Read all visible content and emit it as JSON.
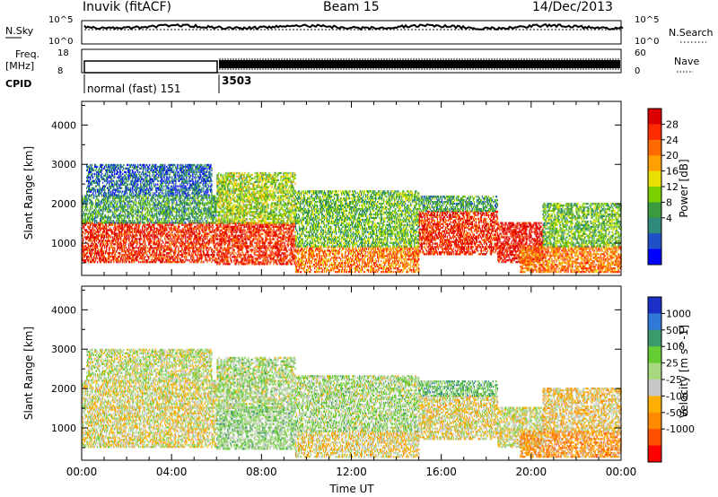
{
  "header": {
    "station": "Inuvik (fitACF)",
    "beam": "Beam 15",
    "date": "14/Dec/2013"
  },
  "strip_panel": {
    "nsky_label": "N.Sky",
    "nsky_ticks": [
      "10^5",
      "10^0"
    ],
    "nsearch_label": "N.Search",
    "nsearch_ticks": [
      "10^5",
      "10^0"
    ],
    "freq_label_1": "Freq.",
    "freq_label_2": "[MHz]",
    "freq_ticks": [
      "18",
      "8"
    ],
    "nave_label": "Nave",
    "nave_ticks": [
      "60",
      "0"
    ],
    "cpid_label": "CPID",
    "cpid_modes": [
      {
        "label": "normal (fast) 151",
        "start_hour": 0.0,
        "end_hour": 6.0
      },
      {
        "label": "3503",
        "start_hour": 6.0,
        "end_hour": 24.0
      }
    ]
  },
  "chart_data": [
    {
      "type": "heatmap",
      "name": "power",
      "ylabel": "Slant Range [km]",
      "xlabel": "",
      "xlim": [
        0,
        24
      ],
      "ylim": [
        180,
        4600
      ],
      "yticks": [
        1000,
        2000,
        3000,
        4000
      ],
      "colorbar": {
        "label": "Power [dB]",
        "ticks": [
          "28",
          "24",
          "20",
          "16",
          "12",
          "8",
          "4"
        ],
        "colors": [
          "#dc0000",
          "#ff2a00",
          "#ff6a00",
          "#ffa000",
          "#e8e000",
          "#7ad000",
          "#3a9a40",
          "#2e8a7a",
          "#2050c8",
          "#0000ff"
        ],
        "range": [
          0,
          30
        ]
      },
      "regions": [
        {
          "t0": 0.0,
          "t1": 6.0,
          "r0": 500,
          "r1": 1500,
          "value": 26
        },
        {
          "t0": 0.0,
          "t1": 6.0,
          "r0": 1500,
          "r1": 2200,
          "value": 10
        },
        {
          "t0": 0.2,
          "t1": 5.8,
          "r0": 2200,
          "r1": 3000,
          "value": 6
        },
        {
          "t0": 6.0,
          "t1": 9.5,
          "r0": 450,
          "r1": 1500,
          "value": 26
        },
        {
          "t0": 6.0,
          "t1": 9.5,
          "r0": 1500,
          "r1": 2800,
          "value": 14
        },
        {
          "t0": 9.5,
          "t1": 15.0,
          "r0": 250,
          "r1": 900,
          "value": 22
        },
        {
          "t0": 9.5,
          "t1": 15.0,
          "r0": 900,
          "r1": 2300,
          "value": 12
        },
        {
          "t0": 15.0,
          "t1": 18.5,
          "r0": 700,
          "r1": 1800,
          "value": 26
        },
        {
          "t0": 15.0,
          "t1": 18.5,
          "r0": 1800,
          "r1": 2200,
          "value": 10
        },
        {
          "t0": 18.5,
          "t1": 20.5,
          "r0": 500,
          "r1": 1500,
          "value": 28
        },
        {
          "t0": 19.5,
          "t1": 24.0,
          "r0": 250,
          "r1": 900,
          "value": 22
        },
        {
          "t0": 20.5,
          "t1": 24.0,
          "r0": 900,
          "r1": 2000,
          "value": 12
        }
      ]
    },
    {
      "type": "heatmap",
      "name": "velocity",
      "ylabel": "Slant Range [km]",
      "xlabel": "Time UT",
      "xlim": [
        0,
        24
      ],
      "ylim": [
        180,
        4600
      ],
      "yticks": [
        1000,
        2000,
        3000,
        4000
      ],
      "xticks": [
        "00:00",
        "04:00",
        "08:00",
        "12:00",
        "16:00",
        "20:00",
        "00:00"
      ],
      "colorbar": {
        "label": "Velocity [m s^-1]",
        "ticks": [
          "1000",
          "500",
          "100",
          "25",
          "-25",
          "-100",
          "-500",
          "-1000"
        ],
        "colors": [
          "#1a30c8",
          "#2f7ad8",
          "#3a9a6a",
          "#66cc33",
          "#a8d880",
          "#c8c8c8",
          "#ffb000",
          "#ff8a00",
          "#ff5000",
          "#ff0000"
        ],
        "range": [
          -1000,
          1000
        ]
      },
      "regions": [
        {
          "t0": 0.0,
          "t1": 6.0,
          "r0": 500,
          "r1": 1500,
          "value": -100
        },
        {
          "t0": 0.0,
          "t1": 6.0,
          "r0": 1500,
          "r1": 2200,
          "value": -80
        },
        {
          "t0": 0.2,
          "t1": 5.8,
          "r0": 2200,
          "r1": 3000,
          "value": 0
        },
        {
          "t0": 6.0,
          "t1": 9.5,
          "r0": 450,
          "r1": 1500,
          "value": 150
        },
        {
          "t0": 6.0,
          "t1": 9.5,
          "r0": 1500,
          "r1": 2800,
          "value": 80
        },
        {
          "t0": 9.5,
          "t1": 15.0,
          "r0": 250,
          "r1": 900,
          "value": -150
        },
        {
          "t0": 9.5,
          "t1": 15.0,
          "r0": 900,
          "r1": 2300,
          "value": 90
        },
        {
          "t0": 15.0,
          "t1": 18.5,
          "r0": 700,
          "r1": 1800,
          "value": -120
        },
        {
          "t0": 15.0,
          "t1": 18.5,
          "r0": 1800,
          "r1": 2200,
          "value": 300
        },
        {
          "t0": 18.5,
          "t1": 20.5,
          "r0": 500,
          "r1": 1500,
          "value": -60
        },
        {
          "t0": 19.5,
          "t1": 24.0,
          "r0": 250,
          "r1": 900,
          "value": -400
        },
        {
          "t0": 20.5,
          "t1": 24.0,
          "r0": 900,
          "r1": 2000,
          "value": -200
        }
      ]
    }
  ]
}
